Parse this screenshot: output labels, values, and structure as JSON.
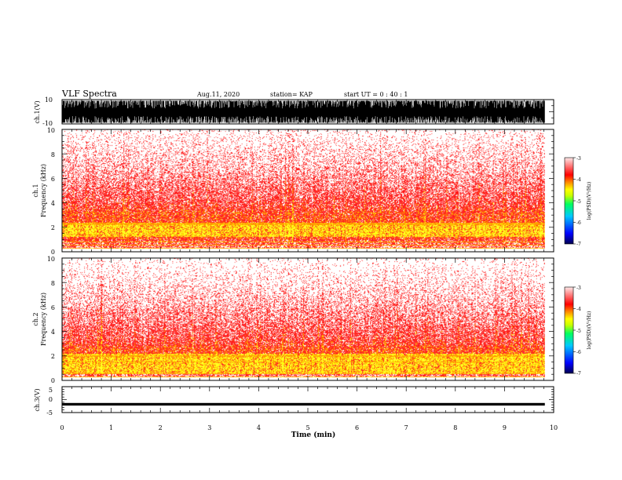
{
  "header": {
    "title": "VLF Spectra",
    "date": "Aug.11, 2020",
    "station": "station= KAP",
    "start": "start  UT =  0 : 40 : 1"
  },
  "chart_data": [
    {
      "type": "line",
      "id": "ch1-waveform",
      "ylabel": "ch.1(V)",
      "ylim": [
        -10,
        10
      ],
      "yticks": [
        "10",
        "-10"
      ],
      "xlim": [
        0,
        10
      ],
      "trace_color": "#000000",
      "data_extent_x": [
        0,
        9.82
      ],
      "envelope_y": [
        -9,
        9
      ]
    },
    {
      "type": "heatmap",
      "id": "ch1-spectrogram",
      "ylabel_line1": "ch.1",
      "ylabel_line2": "Frequency (kHz)",
      "ylim": [
        0,
        10
      ],
      "yticks": [
        "0",
        "2",
        "4",
        "6",
        "8",
        "10"
      ],
      "xlim": [
        0,
        10
      ],
      "data_extent_x": [
        0,
        9.82
      ],
      "intense_band_khz": [
        1.0,
        3.3
      ],
      "yellow_core_khz": [
        1.2,
        2.2
      ],
      "narrowband_lines_khz": [
        0.3,
        0.55,
        0.8,
        2.2,
        2.3
      ],
      "colorbar": {
        "label": "log(PSD)(V²/Hz)",
        "range": [
          -7,
          -3
        ],
        "ticks": [
          "-3",
          "-4",
          "-5",
          "-6",
          "-7"
        ],
        "colors": [
          "#000050",
          "#0000ff",
          "#00c8ff",
          "#00ff60",
          "#c8ff00",
          "#ffff00",
          "#ff8000",
          "#ff0000",
          "#ffffff"
        ]
      }
    },
    {
      "type": "heatmap",
      "id": "ch2-spectrogram",
      "ylabel_line1": "ch.2",
      "ylabel_line2": "Frequency (kHz)",
      "ylim": [
        0,
        10
      ],
      "yticks": [
        "0",
        "2",
        "4",
        "6",
        "8",
        "10"
      ],
      "xlim": [
        0,
        10
      ],
      "data_extent_x": [
        0,
        9.82
      ],
      "intense_band_khz": [
        0.5,
        2.8
      ],
      "yellow_core_khz": [
        0.6,
        2.2
      ],
      "narrowband_lines_khz": [
        0.3,
        0.55,
        1.5,
        2.0
      ],
      "colorbar": {
        "label": "log(PSD)(V²/Hz)",
        "range": [
          -7,
          -3
        ],
        "ticks": [
          "-3",
          "-4",
          "-5",
          "-6",
          "-7"
        ],
        "colors": [
          "#000050",
          "#0000ff",
          "#00c8ff",
          "#00ff60",
          "#c8ff00",
          "#ffff00",
          "#ff8000",
          "#ff0000",
          "#ffffff"
        ]
      }
    },
    {
      "type": "line",
      "id": "ch3-waveform",
      "ylabel": "ch.3(V)",
      "ylim": [
        -5,
        5
      ],
      "yticks": [
        "5",
        "0",
        "-5"
      ],
      "xlim": [
        0,
        10
      ],
      "trace_color": "#000000",
      "data_extent_x": [
        0,
        9.82
      ],
      "band_y": [
        -2.3,
        -1.3
      ]
    }
  ],
  "x_axis": {
    "label": "Time (min)",
    "ticks": [
      "0",
      "1",
      "2",
      "3",
      "4",
      "5",
      "6",
      "7",
      "8",
      "9",
      "10"
    ]
  }
}
